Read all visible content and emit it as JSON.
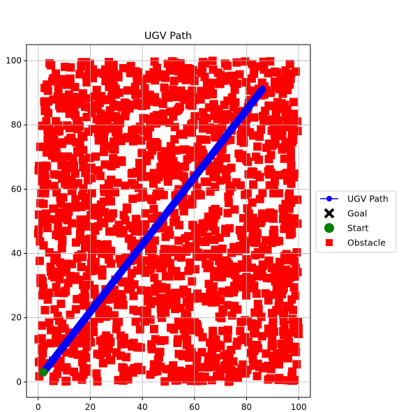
{
  "chart_data": {
    "type": "scatter",
    "title": "UGV Path",
    "xlabel": "",
    "ylabel": "",
    "xlim": [
      -4.5,
      104.5
    ],
    "ylim": [
      -4.8,
      105
    ],
    "xticks": [
      0,
      20,
      40,
      60,
      80,
      100
    ],
    "yticks": [
      0,
      20,
      40,
      60,
      80,
      100
    ],
    "grid": true,
    "legend_position": "right",
    "series": [
      {
        "name": "UGV Path",
        "kind": "line-marker",
        "color": "#0000ff",
        "x_start": 2,
        "y_start": 3,
        "x_end": 86,
        "y_end": 91
      },
      {
        "name": "Goal",
        "kind": "x-marker",
        "color": "#000000",
        "x": 86,
        "y": 91
      },
      {
        "name": "Start",
        "kind": "circle-marker",
        "color": "#008000",
        "x": 2,
        "y": 3
      },
      {
        "name": "Obstacle",
        "kind": "square-marker",
        "color": "#ff0000",
        "x_range": [
          0,
          100
        ],
        "y_range": [
          0,
          100
        ]
      }
    ]
  }
}
